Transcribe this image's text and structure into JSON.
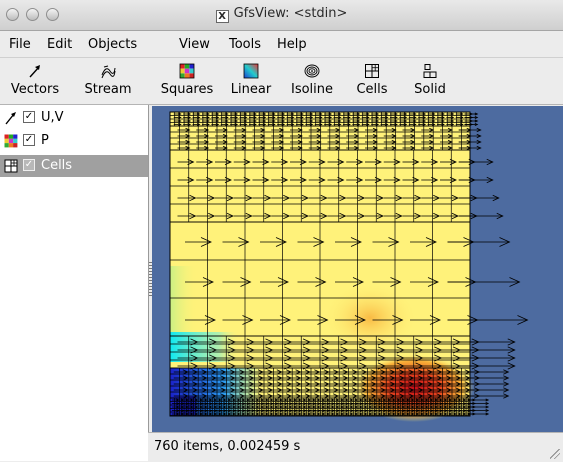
{
  "window": {
    "title": "GfsView: <stdin>",
    "x_glyph": "X"
  },
  "menu": [
    "File",
    "Edit",
    "Objects",
    "View",
    "Tools",
    "Help"
  ],
  "toolbar": [
    {
      "label": "Vectors",
      "icon": "vectors-icon"
    },
    {
      "label": "Stream",
      "icon": "stream-icon"
    },
    {
      "label": "Squares",
      "icon": "squares-icon"
    },
    {
      "label": "Linear",
      "icon": "linear-icon"
    },
    {
      "label": "Isoline",
      "icon": "isoline-icon"
    },
    {
      "label": "Cells",
      "icon": "cells-icon"
    },
    {
      "label": "Solid",
      "icon": "solid-icon"
    }
  ],
  "objects": [
    {
      "label": "U,V",
      "checked": true,
      "icon": "vectors-icon",
      "selected": false
    },
    {
      "label": "P",
      "checked": true,
      "icon": "squares-icon",
      "selected": false
    },
    {
      "label": "Cells",
      "checked": true,
      "icon": "cells-icon",
      "selected": true
    }
  ],
  "check_glyph": "✓",
  "status": {
    "text": "760 items, 0.002459 s"
  },
  "colors": {
    "viewport_bg": "#4d6ba0",
    "field_base": "#fff27a",
    "field_high": "#d8141a",
    "field_low": "#1a22c8",
    "selection": "#a0a0a0"
  }
}
